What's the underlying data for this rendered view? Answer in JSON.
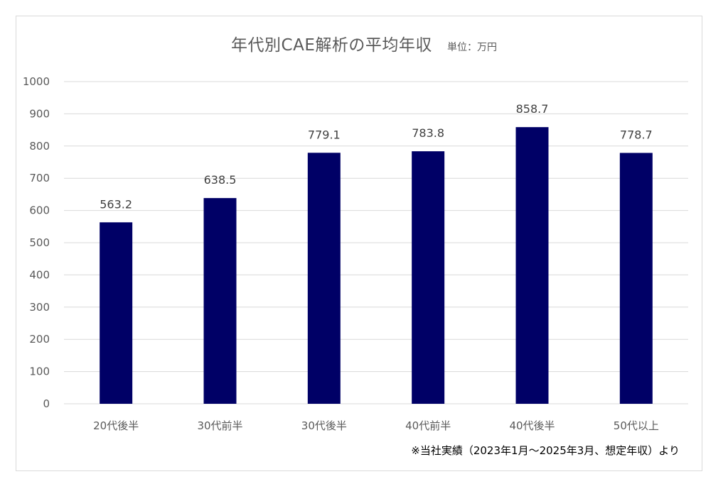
{
  "chart_data": {
    "type": "bar",
    "title": "年代別CAE解析の平均年収",
    "unit_label": "単位：万円",
    "categories": [
      "20代後半",
      "30代前半",
      "30代後半",
      "40代前半",
      "40代後半",
      "50代以上"
    ],
    "values": [
      563.2,
      638.5,
      779.1,
      783.8,
      858.7,
      778.7
    ],
    "data_labels": [
      "563.2",
      "638.5",
      "779.1",
      "783.8",
      "858.7",
      "778.7"
    ],
    "ylim": [
      0,
      1000
    ],
    "yticks": [
      0,
      100,
      200,
      300,
      400,
      500,
      600,
      700,
      800,
      900,
      1000
    ],
    "grid": true,
    "legend": "none",
    "bar_color": "#000066",
    "grid_color": "#d9d9d9",
    "footnote": "※当社実績（2023年1月〜2025年3月、想定年収）より"
  }
}
